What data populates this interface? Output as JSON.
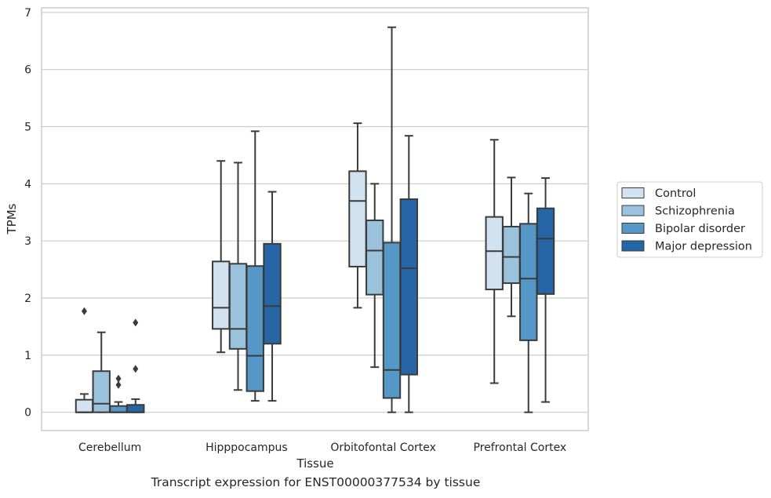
{
  "caption": "Transcript expression for ENST00000377534 by tissue",
  "chart_data": {
    "type": "box",
    "xlabel": "Tissue",
    "ylabel": "TPMs",
    "categories": [
      "Cerebellum",
      "Hipppocampus",
      "Orbitofontal Cortex",
      "Prefrontal Cortex"
    ],
    "ylim": [
      -0.32,
      7.08
    ],
    "yticks": [
      0,
      1,
      2,
      3,
      4,
      5,
      6,
      7
    ],
    "grid": "horizontal",
    "legend_position": "right",
    "series": [
      {
        "name": "Control",
        "color": "#d2e2f1",
        "boxes": [
          {
            "whisker_low": 0.0,
            "q1": 0.0,
            "median": 0.0,
            "q3": 0.22,
            "whisker_high": 0.32,
            "outliers": [
              1.77
            ]
          },
          {
            "whisker_low": 1.05,
            "q1": 1.46,
            "median": 1.83,
            "q3": 2.64,
            "whisker_high": 4.4,
            "outliers": []
          },
          {
            "whisker_low": 1.83,
            "q1": 2.55,
            "median": 3.7,
            "q3": 4.22,
            "whisker_high": 5.06,
            "outliers": []
          },
          {
            "whisker_low": 0.51,
            "q1": 2.15,
            "median": 2.82,
            "q3": 3.42,
            "whisker_high": 4.77,
            "outliers": []
          }
        ]
      },
      {
        "name": "Schizophrenia",
        "color": "#9ac2dc",
        "boxes": [
          {
            "whisker_low": 0.0,
            "q1": 0.0,
            "median": 0.15,
            "q3": 0.72,
            "whisker_high": 1.4,
            "outliers": []
          },
          {
            "whisker_low": 0.39,
            "q1": 1.11,
            "median": 1.46,
            "q3": 2.6,
            "whisker_high": 4.37,
            "outliers": []
          },
          {
            "whisker_low": 0.79,
            "q1": 2.06,
            "median": 2.83,
            "q3": 3.36,
            "whisker_high": 4.0,
            "outliers": []
          },
          {
            "whisker_low": 1.68,
            "q1": 2.26,
            "median": 2.72,
            "q3": 3.25,
            "whisker_high": 4.11,
            "outliers": []
          }
        ]
      },
      {
        "name": "Bipolar disorder",
        "color": "#5597c6",
        "boxes": [
          {
            "whisker_low": 0.0,
            "q1": 0.0,
            "median": 0.0,
            "q3": 0.11,
            "whisker_high": 0.18,
            "outliers": [
              0.48,
              0.59
            ]
          },
          {
            "whisker_low": 0.2,
            "q1": 0.37,
            "median": 0.99,
            "q3": 2.56,
            "whisker_high": 4.92,
            "outliers": []
          },
          {
            "whisker_low": 0.0,
            "q1": 0.25,
            "median": 0.74,
            "q3": 2.97,
            "whisker_high": 6.74,
            "outliers": []
          },
          {
            "whisker_low": 0.0,
            "q1": 1.26,
            "median": 2.34,
            "q3": 3.3,
            "whisker_high": 3.83,
            "outliers": []
          }
        ]
      },
      {
        "name": "Major depression",
        "color": "#2766a6",
        "boxes": [
          {
            "whisker_low": 0.0,
            "q1": 0.0,
            "median": 0.0,
            "q3": 0.13,
            "whisker_high": 0.23,
            "outliers": [
              0.76,
              1.57
            ]
          },
          {
            "whisker_low": 0.2,
            "q1": 1.2,
            "median": 1.86,
            "q3": 2.95,
            "whisker_high": 3.86,
            "outliers": []
          },
          {
            "whisker_low": 0.0,
            "q1": 0.66,
            "median": 2.52,
            "q3": 3.73,
            "whisker_high": 4.84,
            "outliers": []
          },
          {
            "whisker_low": 0.18,
            "q1": 2.07,
            "median": 3.04,
            "q3": 3.57,
            "whisker_high": 4.1,
            "outliers": []
          }
        ]
      }
    ]
  }
}
